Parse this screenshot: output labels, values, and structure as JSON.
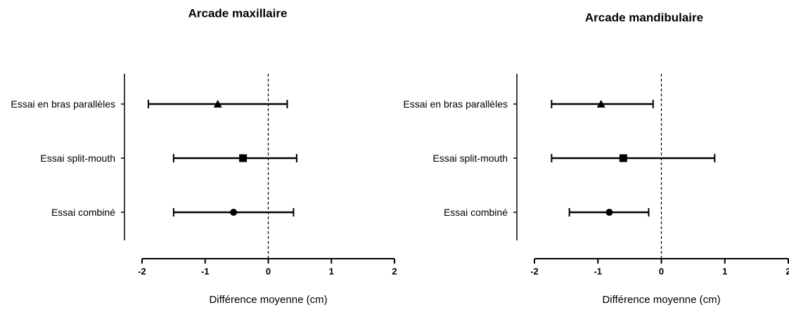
{
  "chart_data": [
    {
      "type": "forest",
      "title": "Arcade maxillaire",
      "categories": [
        "Essai en bras parallèles",
        "Essai split-mouth",
        "Essai combiné"
      ],
      "markers": [
        "triangle",
        "square",
        "circle"
      ],
      "values": [
        -0.8,
        -0.4,
        -0.55
      ],
      "lower": [
        -1.9,
        -1.5,
        -1.5
      ],
      "upper": [
        0.3,
        0.45,
        0.4
      ],
      "xlim": [
        -2,
        2
      ],
      "xticks": [
        -2,
        -1,
        0,
        1,
        2
      ],
      "reference_line": 0,
      "xlabel": "Différence moyenne (cm)",
      "color": "#000000"
    },
    {
      "type": "forest",
      "title": "Arcade mandibulaire",
      "categories": [
        "Essai en bras parallèles",
        "Essai split-mouth",
        "Essai combiné"
      ],
      "markers": [
        "triangle",
        "square",
        "circle"
      ],
      "values": [
        -0.95,
        -0.6,
        -0.82
      ],
      "lower": [
        -1.73,
        -1.73,
        -1.45
      ],
      "upper": [
        -0.13,
        0.84,
        -0.2
      ],
      "xlim": [
        -2,
        2
      ],
      "xticks": [
        -2,
        -1,
        0,
        1,
        2
      ],
      "reference_line": 0,
      "xlabel": "Différence moyenne (cm)",
      "color": "#000000"
    }
  ]
}
